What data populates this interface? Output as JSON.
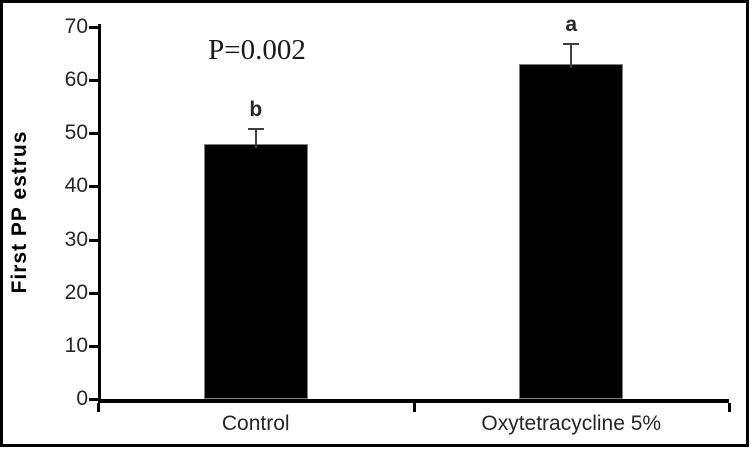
{
  "figure": {
    "background": "#ffffff",
    "frame_color": "#000000"
  },
  "chart_data": {
    "type": "bar",
    "categories": [
      "Control",
      "Oxytetracycline 5%"
    ],
    "values": [
      48,
      63
    ],
    "error_bars": [
      3,
      4
    ],
    "sig_letters": [
      "b",
      "a"
    ],
    "annotation": "P=0.002",
    "title": "",
    "xlabel": "",
    "ylabel": "First PP estrus",
    "ylim": [
      0,
      70
    ],
    "ytick_step": 10,
    "yticks": [
      0,
      10,
      20,
      30,
      40,
      50,
      60,
      70
    ],
    "bar_color": "#000000",
    "error_bar_color": "#404040",
    "axis_color": "#000000",
    "grid": false,
    "legend": false
  }
}
